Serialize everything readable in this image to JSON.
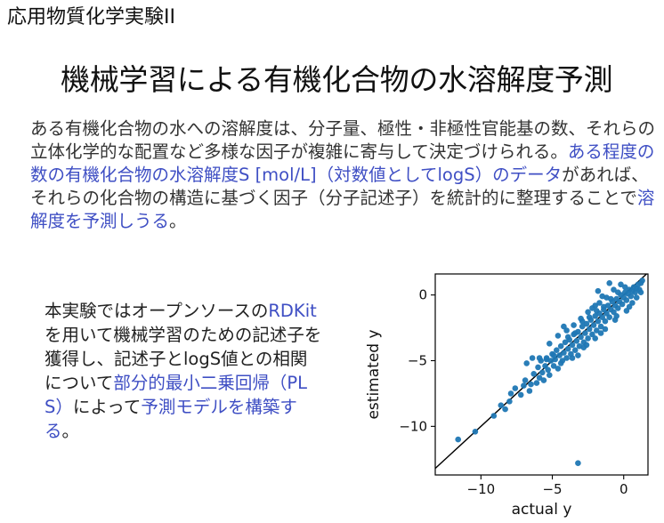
{
  "header": {
    "course": "応用物質化学実験II"
  },
  "title": "機械学習による有機化合物の水溶解度予測",
  "lead": {
    "p1": "ある有機化合物の水への溶解度は、分子量、極性・非極性官能基の数、それらの立体化学的な配置など多様な因子が複雑に寄与して決定づけられる。",
    "h1": "ある程度の数の有機化合物の水溶解度S [mol/L]（対数値としてlogS）のデータ",
    "p2": "があれば、それらの化合物の構造に基づく因子（分子記述子）を統計的に整理することで",
    "h2": "溶解度を予測しうる",
    "p3": "。"
  },
  "side": {
    "p1": "本実験ではオープンソースの",
    "h1": "RDKit",
    "p2": "を用いて機械学習のための記述子を獲得し、記述子とlogS値との相関について",
    "h2": "部分的最小二乗回帰（PLS）",
    "p3": "によって",
    "h3": "予測モデルを構築する",
    "p4": "。"
  },
  "chart_data": {
    "type": "scatter",
    "xlabel": "actual y",
    "ylabel": "estimated y",
    "xlim": [
      -13.2,
      1.7
    ],
    "ylim": [
      -13.7,
      1.6
    ],
    "xticks": [
      -10,
      -5,
      0
    ],
    "yticks": [
      0,
      -5,
      -10
    ],
    "xtick_labels": [
      "−10",
      "−5",
      "0"
    ],
    "ytick_labels": [
      "0",
      "−5",
      "−10"
    ],
    "point_color": "#1f77b4",
    "line_color": "#000000",
    "reference_line": [
      [
        -13.2,
        -13.2
      ],
      [
        1.7,
        1.7
      ]
    ],
    "points": [
      [
        -11.6,
        -11.0
      ],
      [
        -10.4,
        -10.4
      ],
      [
        -9.1,
        -9.2
      ],
      [
        -8.6,
        -8.4
      ],
      [
        -8.3,
        -8.7
      ],
      [
        -8.0,
        -8.1
      ],
      [
        -7.6,
        -7.1
      ],
      [
        -7.9,
        -7.5
      ],
      [
        -7.2,
        -7.6
      ],
      [
        -3.2,
        -12.8
      ],
      [
        -7.0,
        -6.9
      ],
      [
        -6.9,
        -6.5
      ],
      [
        -6.6,
        -7.3
      ],
      [
        -6.5,
        -6.8
      ],
      [
        -6.3,
        -6.0
      ],
      [
        -6.1,
        -6.7
      ],
      [
        -6.0,
        -5.5
      ],
      [
        -5.9,
        -6.3
      ],
      [
        -5.8,
        -5.0
      ],
      [
        -5.7,
        -5.9
      ],
      [
        -5.6,
        -6.5
      ],
      [
        -5.5,
        -5.4
      ],
      [
        -5.4,
        -4.8
      ],
      [
        -5.3,
        -5.7
      ],
      [
        -5.2,
        -6.1
      ],
      [
        -5.1,
        -5.0
      ],
      [
        -5.0,
        -4.5
      ],
      [
        -4.9,
        -5.4
      ],
      [
        -4.8,
        -4.9
      ],
      [
        -4.7,
        -4.2
      ],
      [
        -4.6,
        -5.6
      ],
      [
        -4.5,
        -4.6
      ],
      [
        -4.4,
        -3.9
      ],
      [
        -4.3,
        -5.0
      ],
      [
        -4.2,
        -4.4
      ],
      [
        -4.1,
        -3.6
      ],
      [
        -4.0,
        -4.8
      ],
      [
        -3.9,
        -4.1
      ],
      [
        -3.8,
        -3.4
      ],
      [
        -3.7,
        -4.5
      ],
      [
        -3.6,
        -3.8
      ],
      [
        -3.5,
        -3.0
      ],
      [
        -3.4,
        -4.2
      ],
      [
        -3.3,
        -3.5
      ],
      [
        -3.2,
        -2.8
      ],
      [
        -3.1,
        -3.9
      ],
      [
        -3.0,
        -3.2
      ],
      [
        -2.9,
        -2.4
      ],
      [
        -2.8,
        -3.6
      ],
      [
        -2.7,
        -2.9
      ],
      [
        -2.6,
        -2.2
      ],
      [
        -2.5,
        -3.3
      ],
      [
        -2.4,
        -2.6
      ],
      [
        -2.3,
        -1.9
      ],
      [
        -2.2,
        -3.0
      ],
      [
        -2.1,
        -2.3
      ],
      [
        -2.0,
        -1.6
      ],
      [
        -1.9,
        -2.7
      ],
      [
        -1.8,
        -2.0
      ],
      [
        -1.7,
        -1.4
      ],
      [
        -1.6,
        -2.4
      ],
      [
        -1.5,
        -1.7
      ],
      [
        -1.4,
        -1.1
      ],
      [
        -1.3,
        -2.0
      ],
      [
        -1.2,
        -1.4
      ],
      [
        -1.1,
        -0.8
      ],
      [
        -1.0,
        -1.7
      ],
      [
        -0.9,
        -1.1
      ],
      [
        -0.8,
        -0.5
      ],
      [
        -0.7,
        -1.3
      ],
      [
        -0.6,
        -0.8
      ],
      [
        -0.5,
        -0.3
      ],
      [
        -0.4,
        -1.0
      ],
      [
        -0.3,
        -0.5
      ],
      [
        -0.2,
        0.0
      ],
      [
        -0.1,
        -0.7
      ],
      [
        0.0,
        -0.2
      ],
      [
        0.1,
        0.2
      ],
      [
        0.2,
        -0.4
      ],
      [
        0.3,
        0.1
      ],
      [
        0.4,
        0.4
      ],
      [
        0.5,
        -0.1
      ],
      [
        0.6,
        0.3
      ],
      [
        0.7,
        0.6
      ],
      [
        0.8,
        0.2
      ],
      [
        0.9,
        0.5
      ],
      [
        1.0,
        0.8
      ],
      [
        1.1,
        0.4
      ],
      [
        1.2,
        0.9
      ],
      [
        1.3,
        1.1
      ],
      [
        -5.9,
        -4.8
      ],
      [
        -5.4,
        -4.9
      ],
      [
        -4.9,
        -4.6
      ],
      [
        -4.4,
        -5.2
      ],
      [
        -3.9,
        -3.2
      ],
      [
        -3.4,
        -2.9
      ],
      [
        -2.9,
        -2.0
      ],
      [
        -2.4,
        -1.7
      ],
      [
        -1.9,
        -1.2
      ],
      [
        -1.4,
        -0.9
      ],
      [
        -0.9,
        -0.3
      ],
      [
        -0.4,
        0.2
      ],
      [
        0.1,
        0.6
      ],
      [
        -1.0,
        0.9
      ],
      [
        -1.5,
        -0.1
      ],
      [
        -2.0,
        -0.8
      ],
      [
        -2.5,
        -1.3
      ],
      [
        -3.0,
        -1.8
      ],
      [
        -3.5,
        -2.3
      ],
      [
        -4.0,
        -2.7
      ],
      [
        -2.2,
        -1.0
      ],
      [
        -1.7,
        -0.6
      ],
      [
        -1.2,
        -0.2
      ],
      [
        -0.7,
        0.4
      ],
      [
        -0.2,
        0.8
      ],
      [
        -3.6,
        -4.8
      ],
      [
        -2.6,
        -3.8
      ],
      [
        -1.6,
        -2.9
      ],
      [
        -0.6,
        -1.9
      ],
      [
        0.4,
        -0.9
      ],
      [
        -6.4,
        -4.8
      ],
      [
        -6.8,
        -5.2
      ],
      [
        -5.2,
        -3.7
      ],
      [
        -4.6,
        -3.1
      ],
      [
        -4.2,
        -2.4
      ],
      [
        -3.2,
        -4.6
      ],
      [
        -2.8,
        -4.0
      ],
      [
        -2.0,
        -3.3
      ],
      [
        -1.3,
        -2.6
      ],
      [
        -0.5,
        -1.6
      ],
      [
        0.2,
        -1.2
      ],
      [
        0.6,
        -0.6
      ],
      [
        0.9,
        -0.2
      ],
      [
        1.2,
        0.2
      ],
      [
        -1.8,
        0.3
      ]
    ]
  }
}
